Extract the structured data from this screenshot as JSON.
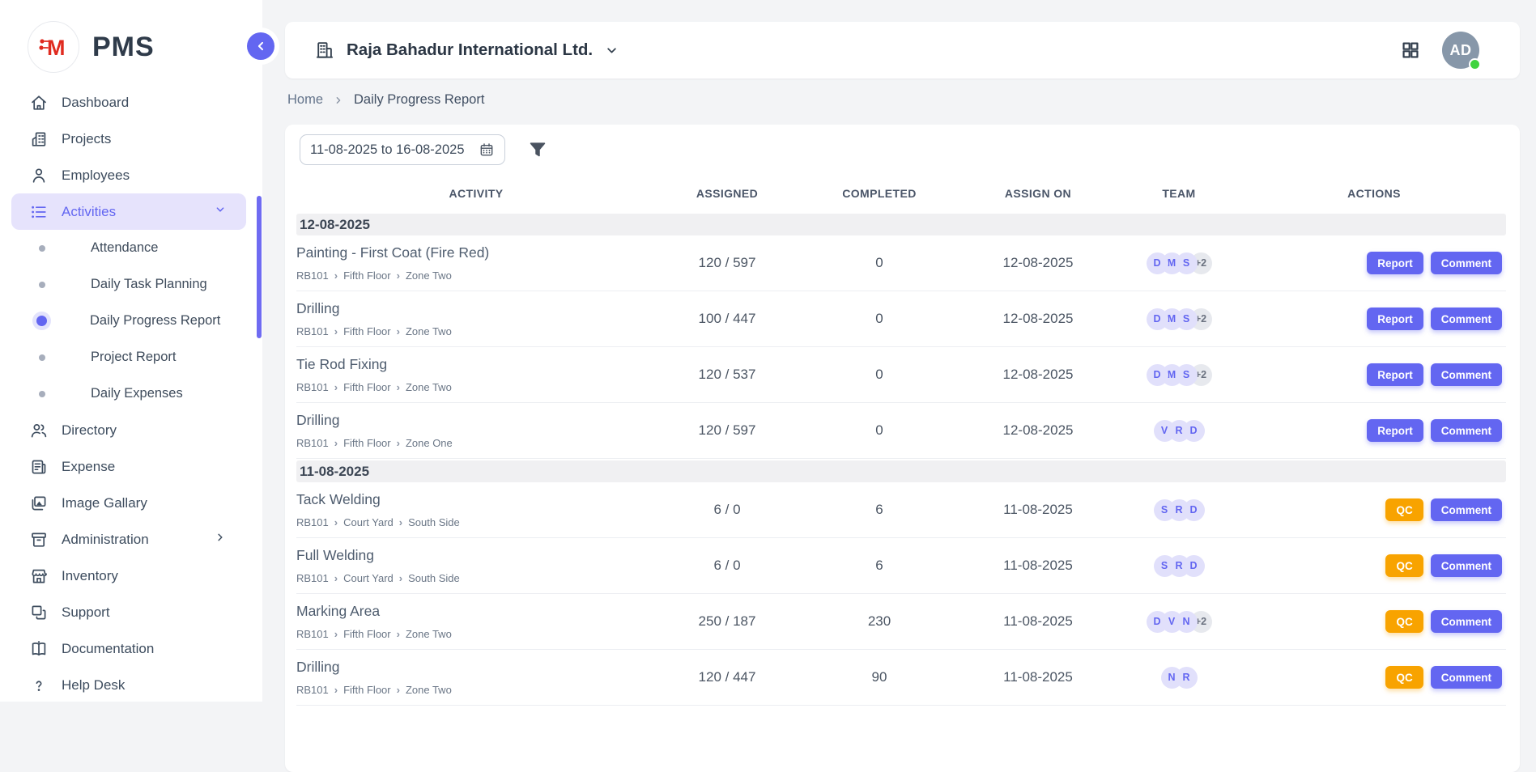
{
  "brand": {
    "name": "PMS"
  },
  "sidebar": {
    "items": [
      {
        "label": "Dashboard",
        "icon": "home"
      },
      {
        "label": "Projects",
        "icon": "building"
      },
      {
        "label": "Employees",
        "icon": "person"
      },
      {
        "label": "Activities",
        "icon": "list",
        "active": true,
        "chevron": "down"
      },
      {
        "label": "Attendance",
        "sub": true
      },
      {
        "label": "Daily Task Planning",
        "sub": true
      },
      {
        "label": "Daily Progress Report",
        "sub": true,
        "active": true
      },
      {
        "label": "Project Report",
        "sub": true
      },
      {
        "label": "Daily Expenses",
        "sub": true
      },
      {
        "label": "Directory",
        "icon": "people"
      },
      {
        "label": "Expense",
        "icon": "receipt"
      },
      {
        "label": "Image Gallary",
        "icon": "image"
      },
      {
        "label": "Administration",
        "icon": "archive",
        "chevron": "right"
      },
      {
        "label": "Inventory",
        "icon": "store"
      },
      {
        "label": "Support",
        "icon": "squares"
      },
      {
        "label": "Documentation",
        "icon": "book"
      },
      {
        "label": "Help Desk",
        "icon": "question"
      }
    ]
  },
  "topbar": {
    "company": "Raja Bahadur International Ltd.",
    "avatar_initials": "AD"
  },
  "breadcrumb": {
    "home": "Home",
    "current": "Daily Progress Report"
  },
  "filters": {
    "date_range": "11-08-2025 to 16-08-2025"
  },
  "table": {
    "columns": [
      "ACTIVITY",
      "ASSIGNED",
      "COMPLETED",
      "ASSIGN ON",
      "TEAM",
      "ACTIONS"
    ],
    "groups": [
      {
        "date": "12-08-2025",
        "rows": [
          {
            "title": "Painting - First Coat (Fire Red)",
            "path": [
              "RB101",
              "Fifth Floor",
              "Zone Two"
            ],
            "assigned": "120 / 597",
            "completed": "0",
            "assign_on": "12-08-2025",
            "team": [
              "D",
              "M",
              "S"
            ],
            "team_extra": "+2",
            "actions": [
              "Report",
              "Comment"
            ]
          },
          {
            "title": "Drilling",
            "path": [
              "RB101",
              "Fifth Floor",
              "Zone Two"
            ],
            "assigned": "100 / 447",
            "completed": "0",
            "assign_on": "12-08-2025",
            "team": [
              "D",
              "M",
              "S"
            ],
            "team_extra": "+2",
            "actions": [
              "Report",
              "Comment"
            ]
          },
          {
            "title": "Tie Rod Fixing",
            "path": [
              "RB101",
              "Fifth Floor",
              "Zone Two"
            ],
            "assigned": "120 / 537",
            "completed": "0",
            "assign_on": "12-08-2025",
            "team": [
              "D",
              "M",
              "S"
            ],
            "team_extra": "+2",
            "actions": [
              "Report",
              "Comment"
            ]
          },
          {
            "title": "Drilling",
            "path": [
              "RB101",
              "Fifth Floor",
              "Zone One"
            ],
            "assigned": "120 / 597",
            "completed": "0",
            "assign_on": "12-08-2025",
            "team": [
              "V",
              "R",
              "D"
            ],
            "team_extra": "",
            "actions": [
              "Report",
              "Comment"
            ]
          }
        ]
      },
      {
        "date": "11-08-2025",
        "rows": [
          {
            "title": "Tack Welding",
            "path": [
              "RB101",
              "Court Yard",
              "South Side"
            ],
            "assigned": "6 / 0",
            "completed": "6",
            "assign_on": "11-08-2025",
            "team": [
              "S",
              "R",
              "D"
            ],
            "team_extra": "",
            "actions": [
              "QC",
              "Comment"
            ]
          },
          {
            "title": "Full Welding",
            "path": [
              "RB101",
              "Court Yard",
              "South Side"
            ],
            "assigned": "6 / 0",
            "completed": "6",
            "assign_on": "11-08-2025",
            "team": [
              "S",
              "R",
              "D"
            ],
            "team_extra": "",
            "actions": [
              "QC",
              "Comment"
            ]
          },
          {
            "title": "Marking Area",
            "path": [
              "RB101",
              "Fifth Floor",
              "Zone Two"
            ],
            "assigned": "250 / 187",
            "completed": "230",
            "assign_on": "11-08-2025",
            "team": [
              "D",
              "V",
              "N"
            ],
            "team_extra": "+2",
            "actions": [
              "QC",
              "Comment"
            ]
          },
          {
            "title": "Drilling",
            "path": [
              "RB101",
              "Fifth Floor",
              "Zone Two"
            ],
            "assigned": "120 / 447",
            "completed": "90",
            "assign_on": "11-08-2025",
            "team": [
              "N",
              "R"
            ],
            "team_extra": "",
            "actions": [
              "QC",
              "Comment"
            ]
          }
        ]
      }
    ]
  },
  "colors": {
    "accent": "#6366f1",
    "accent_light": "#e6e3fc",
    "qc_orange": "#f8a300",
    "logo_red": "#e02b20",
    "status_green": "#3fd33f",
    "avatar_bg": "#8797a9"
  }
}
